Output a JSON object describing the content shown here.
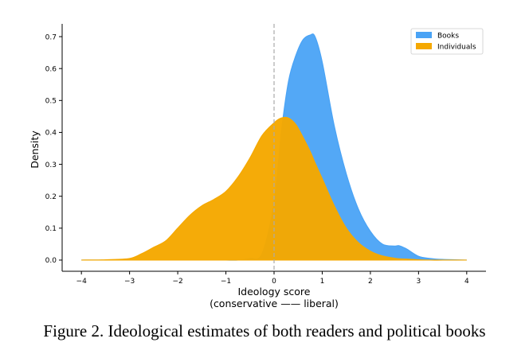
{
  "caption": "Figure 2. Ideological estimates of both readers and political books",
  "chart_data": {
    "type": "area",
    "title": "",
    "xlabel_line1": "Ideology score",
    "xlabel_line2": "(conservative —— liberal)",
    "ylabel": "Density",
    "xlim": [
      -4.4,
      4.4
    ],
    "ylim": [
      -0.035,
      0.74
    ],
    "xticks": [
      -4,
      -3,
      -2,
      -1,
      0,
      1,
      2,
      3,
      4
    ],
    "xtick_labels": [
      "−4",
      "−3",
      "−2",
      "−1",
      "0",
      "1",
      "2",
      "3",
      "4"
    ],
    "yticks": [
      0.0,
      0.1,
      0.2,
      0.3,
      0.4,
      0.5,
      0.6,
      0.7
    ],
    "ytick_labels": [
      "0.0",
      "0.1",
      "0.2",
      "0.3",
      "0.4",
      "0.5",
      "0.6",
      "0.7"
    ],
    "reference_line_x": 0,
    "legend_position": "top-right",
    "grid": false,
    "x": [
      -4.0,
      -3.5,
      -3.0,
      -2.75,
      -2.5,
      -2.25,
      -2.0,
      -1.75,
      -1.5,
      -1.25,
      -1.0,
      -0.75,
      -0.5,
      -0.25,
      0.0,
      0.15,
      0.3,
      0.45,
      0.6,
      0.75,
      0.85,
      1.0,
      1.25,
      1.5,
      1.75,
      2.0,
      2.25,
      2.5,
      2.6,
      2.75,
      3.0,
      3.25,
      3.5,
      4.0
    ],
    "series": [
      {
        "name": "Books",
        "color": "#4aa3f5",
        "values": [
          0,
          0,
          0,
          0,
          0,
          0,
          0,
          0,
          0,
          0,
          0,
          0,
          0.005,
          0.02,
          0.18,
          0.4,
          0.56,
          0.64,
          0.69,
          0.705,
          0.7,
          0.62,
          0.42,
          0.27,
          0.16,
          0.09,
          0.05,
          0.044,
          0.045,
          0.035,
          0.012,
          0.005,
          0.002,
          0
        ]
      },
      {
        "name": "Individuals",
        "color": "#f5a800",
        "values": [
          0,
          0.001,
          0.005,
          0.02,
          0.04,
          0.06,
          0.1,
          0.14,
          0.17,
          0.19,
          0.215,
          0.26,
          0.32,
          0.39,
          0.43,
          0.445,
          0.445,
          0.425,
          0.385,
          0.34,
          0.305,
          0.255,
          0.17,
          0.1,
          0.055,
          0.028,
          0.013,
          0.006,
          0.004,
          0.003,
          0.001,
          0,
          0,
          0
        ]
      }
    ]
  }
}
